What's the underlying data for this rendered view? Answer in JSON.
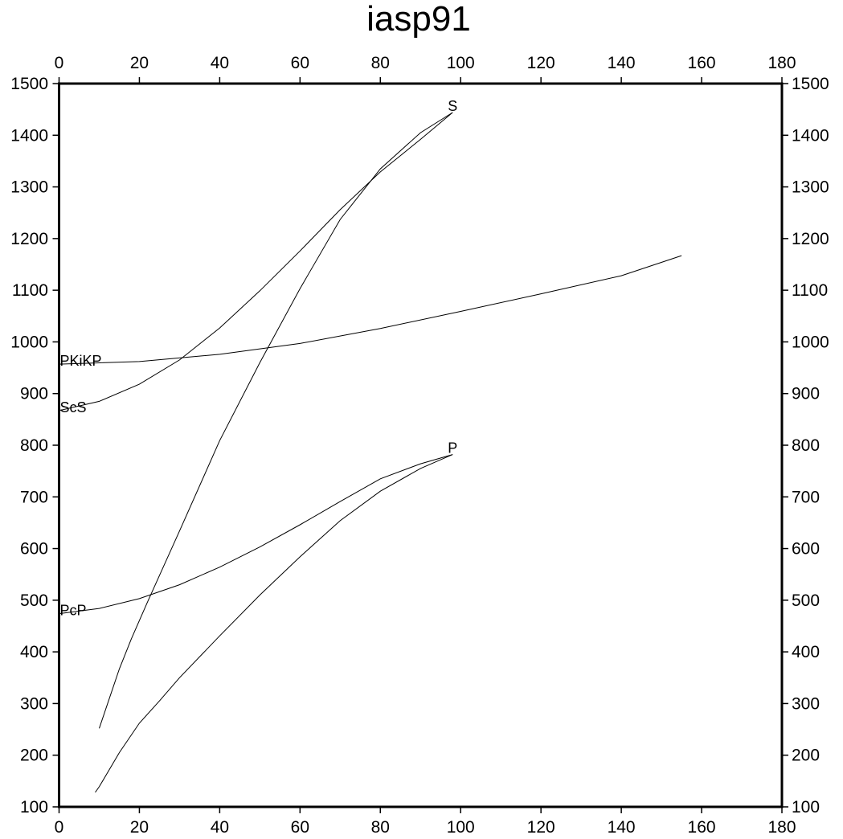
{
  "chart_data": {
    "type": "line",
    "title": "iasp91",
    "xlabel": "",
    "ylabel": "",
    "xlim": [
      0,
      180
    ],
    "ylim": [
      100,
      1500
    ],
    "xticks": [
      0,
      20,
      40,
      60,
      80,
      100,
      120,
      140,
      160,
      180
    ],
    "yticks": [
      100,
      200,
      300,
      400,
      500,
      600,
      700,
      800,
      900,
      1000,
      1100,
      1200,
      1300,
      1400,
      1500
    ],
    "grid": false,
    "line_color": "#000000",
    "series": [
      {
        "name": "P",
        "points": [
          [
            9,
            128
          ],
          [
            10,
            139
          ],
          [
            15,
            205
          ],
          [
            20,
            262
          ],
          [
            25,
            305
          ],
          [
            30,
            350
          ],
          [
            40,
            431
          ],
          [
            50,
            510
          ],
          [
            60,
            584
          ],
          [
            70,
            654
          ],
          [
            80,
            711
          ],
          [
            90,
            755
          ],
          [
            98,
            782
          ]
        ]
      },
      {
        "name": "S",
        "points": [
          [
            10,
            252
          ],
          [
            12,
            298
          ],
          [
            15,
            367
          ],
          [
            18,
            425
          ],
          [
            22,
            496
          ],
          [
            30,
            634
          ],
          [
            40,
            809
          ],
          [
            50,
            960
          ],
          [
            60,
            1103
          ],
          [
            70,
            1237
          ],
          [
            80,
            1335
          ],
          [
            90,
            1405
          ],
          [
            98,
            1444
          ]
        ]
      },
      {
        "name": "PcP",
        "points": [
          [
            0,
            474
          ],
          [
            10,
            484
          ],
          [
            20,
            503
          ],
          [
            30,
            530
          ],
          [
            40,
            564
          ],
          [
            50,
            603
          ],
          [
            60,
            646
          ],
          [
            70,
            691
          ],
          [
            80,
            735
          ],
          [
            90,
            764
          ],
          [
            98,
            782
          ]
        ]
      },
      {
        "name": "ScS",
        "points": [
          [
            0,
            867
          ],
          [
            10,
            885
          ],
          [
            20,
            918
          ],
          [
            30,
            965
          ],
          [
            40,
            1027
          ],
          [
            50,
            1099
          ],
          [
            60,
            1176
          ],
          [
            70,
            1256
          ],
          [
            80,
            1329
          ],
          [
            90,
            1392
          ],
          [
            98,
            1444
          ]
        ]
      },
      {
        "name": "PKiKP",
        "points": [
          [
            0,
            957
          ],
          [
            20,
            962
          ],
          [
            40,
            976
          ],
          [
            60,
            997
          ],
          [
            80,
            1026
          ],
          [
            100,
            1059
          ],
          [
            120,
            1093
          ],
          [
            140,
            1128
          ],
          [
            155,
            1167
          ]
        ]
      }
    ],
    "annotations": [
      {
        "text": "S",
        "x": 98,
        "y": 1444
      },
      {
        "text": "P",
        "x": 98,
        "y": 782
      },
      {
        "text": "PKiKP",
        "x": 0,
        "y": 957
      },
      {
        "text": "ScS",
        "x": 0,
        "y": 867
      },
      {
        "text": "PcP",
        "x": 0,
        "y": 474
      }
    ]
  }
}
